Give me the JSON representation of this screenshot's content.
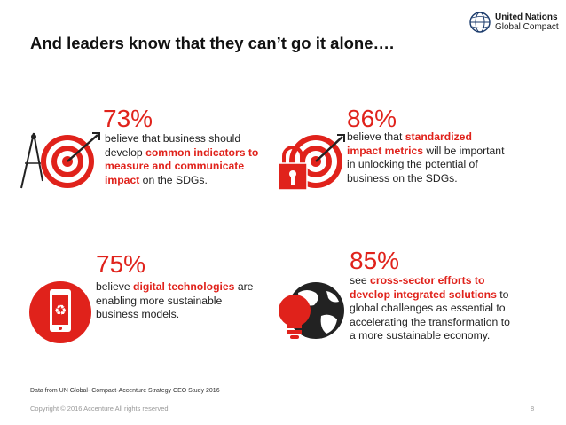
{
  "header": {
    "title": "And leaders know that they can’t go it alone….",
    "logo_line1": "United Nations",
    "logo_line2": "Global Compact"
  },
  "stats": [
    {
      "percent": "73%",
      "text_before": "believe that business should develop ",
      "highlight": "common indicators to measure and communicate impact",
      "text_after": " on the SDGs.",
      "icon": "target-compass-icon"
    },
    {
      "percent": "86%",
      "text_before": "believe that ",
      "highlight": "standardized impact metrics",
      "text_after": " will be important in unlocking the potential of business on the SDGs.",
      "icon": "target-lock-icon"
    },
    {
      "percent": "75%",
      "text_before": "believe ",
      "highlight": "digital technologies",
      "text_after": " are enabling more sustainable business models.",
      "icon": "smartphone-recycle-icon"
    },
    {
      "percent": "85%",
      "text_before": "see ",
      "highlight": "cross-sector efforts to develop integrated solutions",
      "text_after": " to global challenges as essential to accelerating the transformation to a more sustainable economy.",
      "icon": "lightbulb-globe-icon"
    }
  ],
  "footer": {
    "source": "Data from UN Global- Compact-Accenture Strategy CEO Study 2016",
    "copyright": "Copyright © 2016 Accenture  All rights reserved.",
    "page_number": "8"
  },
  "colors": {
    "accent": "#e0221b",
    "text": "#222222"
  }
}
